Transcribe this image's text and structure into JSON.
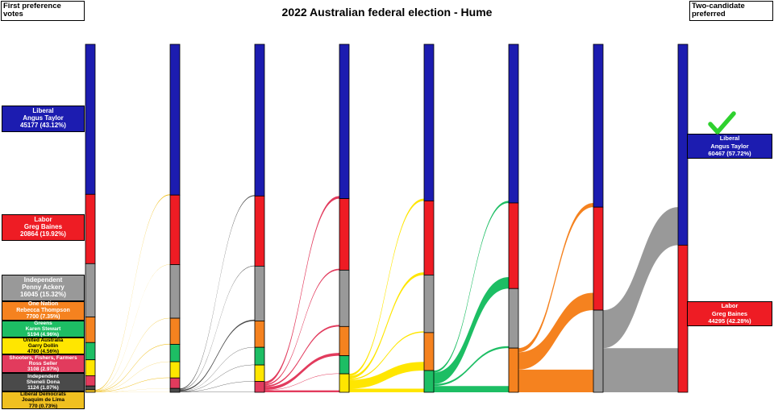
{
  "header": {
    "title": "2022 Australian federal election - Hume",
    "left_box_label": "First preference votes",
    "right_box_label": "Two-candidate preferred"
  },
  "chart_data": {
    "type": "sankey",
    "title": "2022 Australian federal election - Hume",
    "left_axis_label": "First preference votes",
    "right_axis_label": "Two-candidate preferred",
    "candidates": [
      {
        "party": "Liberal",
        "name": "Angus Taylor",
        "votes": 45177,
        "pct": 43.12,
        "votes_label": "45177 (43.12%)",
        "color": "#1c1cb0",
        "text_color": "#ffffff"
      },
      {
        "party": "Labor",
        "name": "Greg Baines",
        "votes": 20864,
        "pct": 19.92,
        "votes_label": "20864 (19.92%)",
        "color": "#ee1c24",
        "text_color": "#ffffff"
      },
      {
        "party": "Independent",
        "name": "Penny Ackery",
        "votes": 16045,
        "pct": 15.32,
        "votes_label": "16045 (15.32%)",
        "color": "#999999",
        "text_color": "#ffffff"
      },
      {
        "party": "One Nation",
        "name": "Rebecca Thompson",
        "votes": 7700,
        "pct": 7.35,
        "votes_label": "7700 (7.35%)",
        "color": "#f5821f",
        "text_color": "#ffffff"
      },
      {
        "party": "Greens",
        "name": "Karen Stewart",
        "votes": 5194,
        "pct": 4.96,
        "votes_label": "5194 (4.96%)",
        "color": "#1dbe64",
        "text_color": "#ffffff"
      },
      {
        "party": "United Australia",
        "name": "Garry Dollin",
        "votes": 4780,
        "pct": 4.56,
        "votes_label": "4780 (4.56%)",
        "color": "#ffe600",
        "text_color": "#000000"
      },
      {
        "party": "Shooters, Fishers, Farmers",
        "name": "Ross Seller",
        "votes": 3108,
        "pct": 2.97,
        "votes_label": "3108 (2.97%)",
        "color": "#e23b5d",
        "text_color": "#ffffff"
      },
      {
        "party": "Independent",
        "name": "Sheneli Dona",
        "votes": 1124,
        "pct": 1.07,
        "votes_label": "1124 (1.07%)",
        "color": "#4a4a4a",
        "text_color": "#ffffff"
      },
      {
        "party": "Liberal Democrats",
        "name": "Joaquim de Lima",
        "votes": 770,
        "pct": 0.73,
        "votes_label": "770 (0.73%)",
        "color": "#f0c020",
        "text_color": "#000000"
      }
    ],
    "two_candidate_preferred": [
      {
        "party": "Liberal",
        "name": "Angus Taylor",
        "votes": 60467,
        "pct": 57.72,
        "votes_label": "60467 (57.72%)",
        "candidate": 0,
        "elected": true
      },
      {
        "party": "Labor",
        "name": "Greg Baines",
        "votes": 44295,
        "pct": 42.28,
        "votes_label": "44295 (42.28%)",
        "candidate": 1,
        "elected": false
      }
    ],
    "rounds": [
      {
        "cands": [
          0,
          1,
          2,
          3,
          4,
          5,
          6,
          7,
          8
        ],
        "pct": [
          43.12,
          19.92,
          15.32,
          7.35,
          4.96,
          4.56,
          2.97,
          1.07,
          0.73
        ]
      },
      {
        "cands": [
          0,
          1,
          2,
          3,
          4,
          5,
          6,
          7
        ],
        "pct": [
          43.33,
          19.99,
          15.4,
          7.5,
          5.0,
          4.67,
          3.0,
          1.11
        ]
      },
      {
        "cands": [
          0,
          1,
          2,
          3,
          4,
          5,
          6
        ],
        "pct": [
          43.6,
          20.15,
          15.75,
          7.58,
          5.08,
          4.74,
          3.1
        ]
      },
      {
        "cands": [
          0,
          1,
          2,
          3,
          4,
          5
        ],
        "pct": [
          44.35,
          20.55,
          16.2,
          8.4,
          5.2,
          5.3
        ]
      },
      {
        "cands": [
          0,
          1,
          2,
          3,
          4
        ],
        "pct": [
          45.0,
          21.3,
          16.55,
          10.9,
          6.25
        ]
      },
      {
        "cands": [
          0,
          1,
          2,
          3
        ],
        "pct": [
          45.6,
          24.6,
          17.1,
          12.7
        ]
      },
      {
        "cands": [
          0,
          1,
          2
        ],
        "pct": [
          46.8,
          29.6,
          23.6
        ]
      },
      {
        "cands": [
          0,
          1
        ],
        "pct": [
          57.72,
          42.28
        ]
      }
    ],
    "elected_check_color": "#2fd12f"
  }
}
